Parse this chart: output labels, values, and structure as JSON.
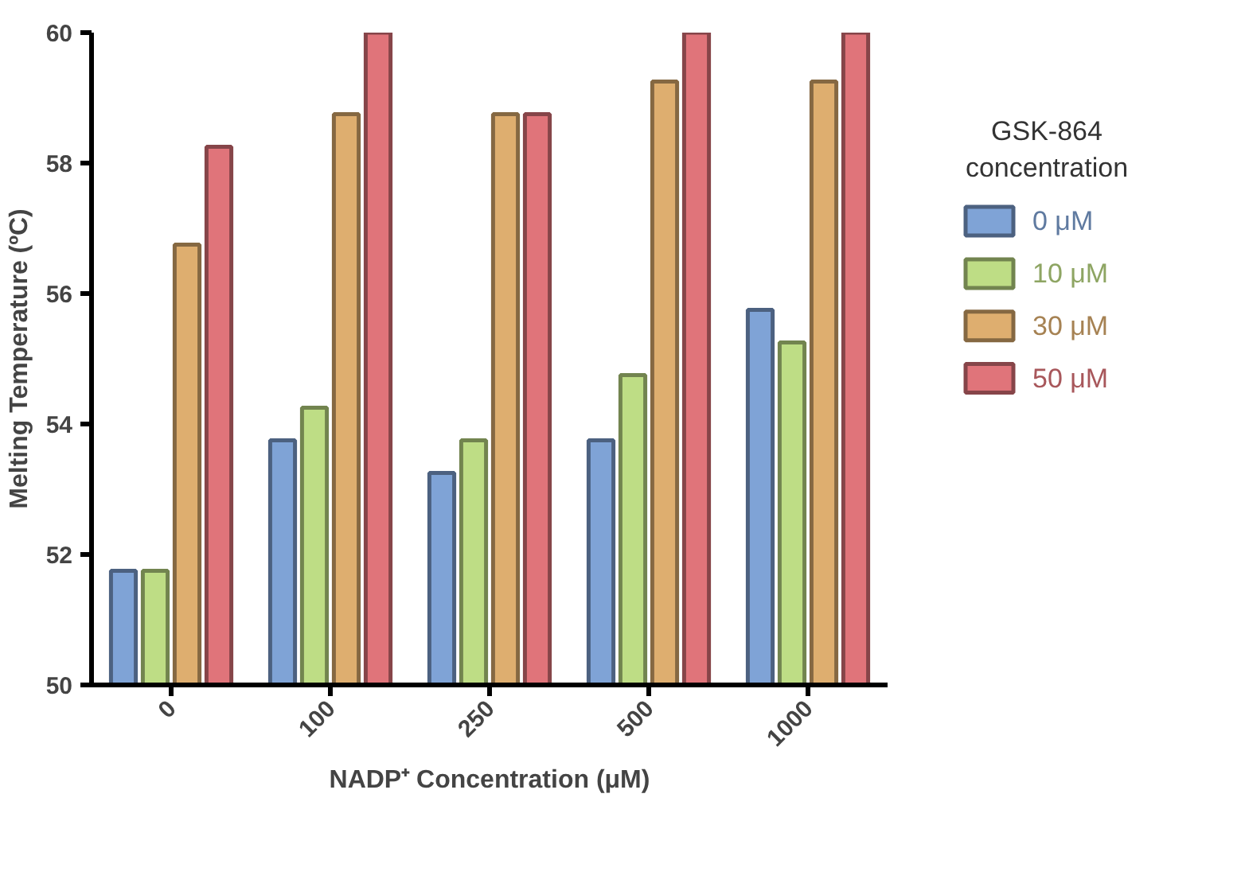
{
  "chart_data": {
    "type": "bar",
    "xlabel": "NADP⁺ Concentration (μM)",
    "ylabel": "Melting Temperature (ºC)",
    "legend_title": "GSK-864\nconcentration",
    "categories": [
      "0",
      "100",
      "250",
      "500",
      "1000"
    ],
    "series": [
      {
        "name": "0 μM",
        "color": "#7fa3d6",
        "values": [
          51.75,
          53.75,
          53.25,
          53.75,
          55.75
        ]
      },
      {
        "name": "10 μM",
        "color": "#bedd85",
        "values": [
          51.75,
          54.25,
          53.75,
          54.75,
          55.25
        ]
      },
      {
        "name": "30 μM",
        "color": "#deae6f",
        "values": [
          56.75,
          58.75,
          58.75,
          59.25,
          59.25
        ]
      },
      {
        "name": "50 μM",
        "color": "#e0747a",
        "values": [
          58.25,
          60,
          58.75,
          60,
          60
        ]
      }
    ],
    "ylim": [
      50,
      60
    ],
    "yticks": [
      50,
      52,
      54,
      56,
      58,
      60
    ],
    "grid": false,
    "legend": "right"
  }
}
